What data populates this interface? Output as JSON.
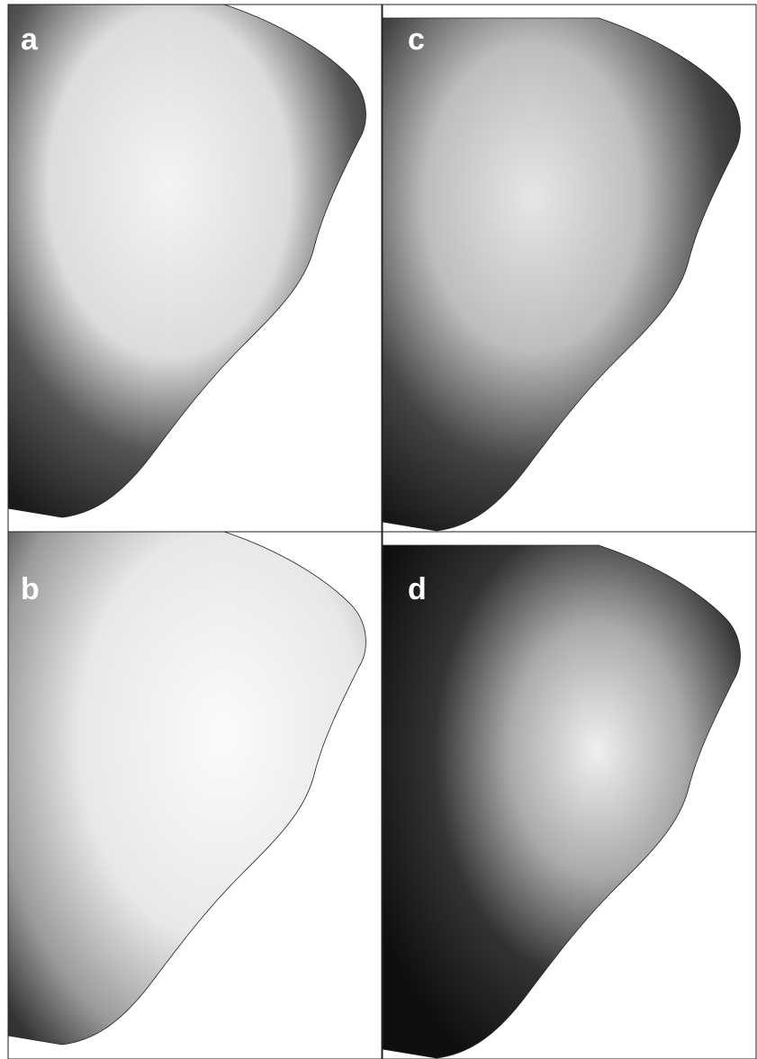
{
  "panels": [
    {
      "label": "a"
    },
    {
      "label": "c"
    },
    {
      "label": "b"
    },
    {
      "label": "d"
    }
  ]
}
